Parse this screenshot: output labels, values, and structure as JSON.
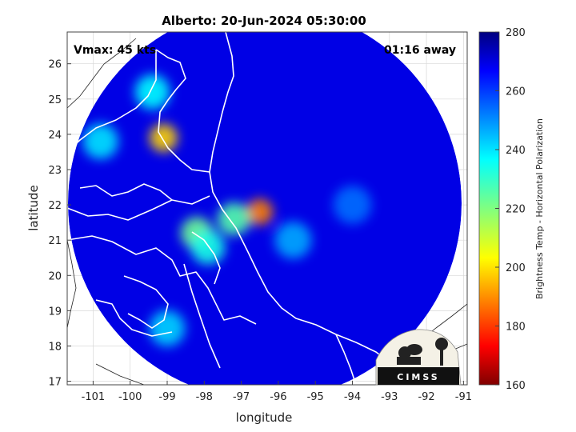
{
  "chart_data": {
    "type": "heatmap",
    "title": "Alberto: 20-Jun-2024 05:30:00",
    "xlabel": "longitude",
    "ylabel": "latitude",
    "xlim": [
      -101.7,
      -90.9
    ],
    "ylim": [
      16.9,
      26.9
    ],
    "xticks": [
      -101,
      -100,
      -99,
      -98,
      -97,
      -96,
      -95,
      -94,
      -93,
      -92,
      -91
    ],
    "yticks": [
      17,
      18,
      19,
      20,
      21,
      22,
      23,
      24,
      25,
      26
    ],
    "grid": true,
    "annotations": {
      "top_left": "Vmax: 45 kts",
      "top_right": "01:16 away"
    },
    "colorbar": {
      "label": "Brightness Temp - Horizontal Polarization",
      "range": [
        160,
        280
      ],
      "ticks": [
        160,
        180,
        200,
        220,
        240,
        260,
        280
      ],
      "colormap": "jet"
    },
    "swath": {
      "center": [
        -96.7,
        21.7
      ],
      "radius_deg": 5.4,
      "background_value": 268
    },
    "features": [
      {
        "lon": -96.5,
        "lat": 21.8,
        "value": 190
      },
      {
        "lon": -99.1,
        "lat": 23.9,
        "value": 200
      },
      {
        "lon": -98.2,
        "lat": 21.2,
        "value": 222
      },
      {
        "lon": -97.2,
        "lat": 21.6,
        "value": 225
      },
      {
        "lon": -97.9,
        "lat": 20.8,
        "value": 232
      },
      {
        "lon": -99.4,
        "lat": 25.2,
        "value": 235
      },
      {
        "lon": -100.8,
        "lat": 23.8,
        "value": 238
      },
      {
        "lon": -95.6,
        "lat": 21.0,
        "value": 245
      },
      {
        "lon": -99.0,
        "lat": 18.5,
        "value": 240
      },
      {
        "lon": -94.0,
        "lat": 22.0,
        "value": 252
      }
    ]
  },
  "logo": {
    "text": "CIMSS"
  }
}
